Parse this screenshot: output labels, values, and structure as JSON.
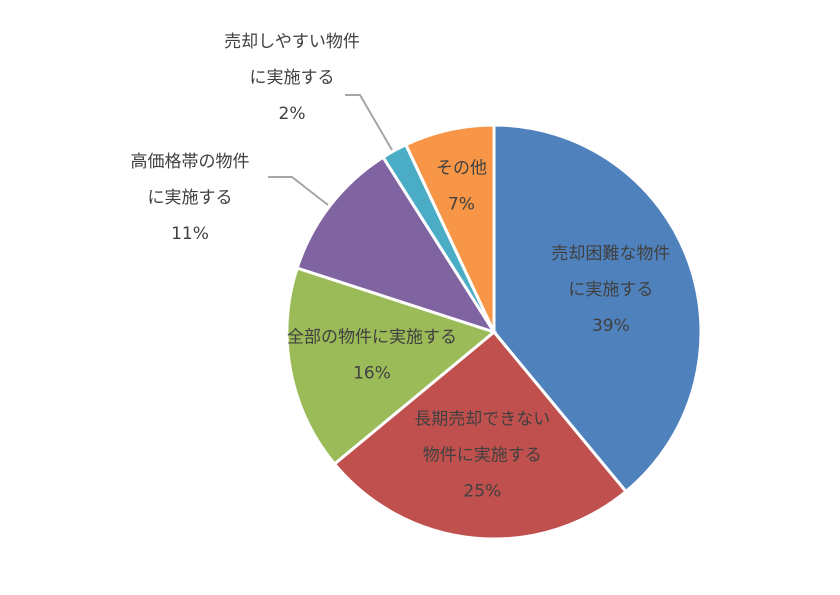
{
  "chart_data": {
    "type": "pie",
    "categories": [
      [
        "売却困難な物件",
        "に実施する"
      ],
      [
        "長期売却できない",
        "物件に実施する"
      ],
      [
        "全部の物件に実施する"
      ],
      [
        "高価格帯の物件",
        "に実施する"
      ],
      [
        "売却しやすい物件",
        "に実施する"
      ],
      [
        "その他"
      ]
    ],
    "values": [
      39,
      25,
      16,
      11,
      2,
      7
    ],
    "value_labels": [
      "39%",
      "25%",
      "16%",
      "11%",
      "2%",
      "7%"
    ],
    "colors": [
      "#4f81bd",
      "#c0504d",
      "#9bbb59",
      "#8064a2",
      "#4bacc6",
      "#f79646"
    ]
  }
}
